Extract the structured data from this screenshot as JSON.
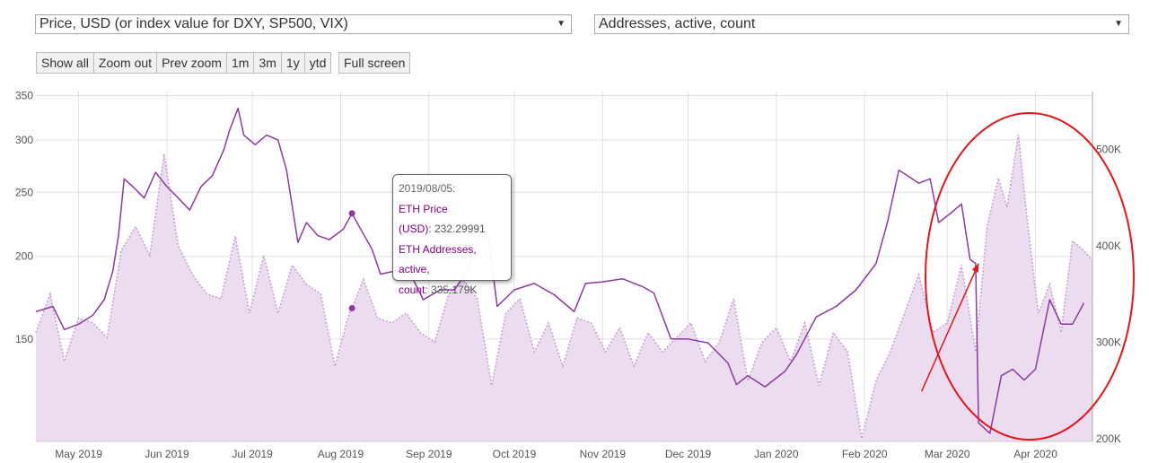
{
  "controls": {
    "left_select": "Price, USD (or index value for DXY, SP500, VIX)",
    "right_select": "Addresses, active, count",
    "zoom_buttons": [
      "Show all",
      "Zoom out",
      "Prev zoom"
    ],
    "range_buttons": [
      "1m",
      "3m",
      "1y",
      "ytd"
    ],
    "fullscreen_button": "Full screen"
  },
  "tooltip": {
    "date": "2019/08/05:",
    "price_label_1": "ETH Price",
    "price_label_2": "(USD)",
    "price_value": "232.29991",
    "addr_label_1": "ETH Addresses, active,",
    "addr_label_2": "count",
    "addr_value": "335.179K"
  },
  "colors": {
    "price_line": "#8b3a9e",
    "addresses_line": "#c8a0d2",
    "addresses_fill": "#ecdcef",
    "annotation": "#e8141b",
    "grid": "#e0e0e0"
  },
  "chart_data": {
    "type": "line",
    "x_range": [
      "2019-04-16",
      "2020-04-21"
    ],
    "y_left": {
      "scale": "log",
      "range": [
        105,
        355
      ],
      "ticks": [
        150,
        200,
        250,
        300,
        350
      ]
    },
    "y_right": {
      "range": [
        197000,
        560000
      ],
      "ticks": [
        "200K",
        "300K",
        "400K",
        "500K"
      ]
    },
    "x_ticks": [
      "May 2019",
      "Jun 2019",
      "Jul 2019",
      "Aug 2019",
      "Sep 2019",
      "Oct 2019",
      "Nov 2019",
      "Dec 2019",
      "Jan 2020",
      "Feb 2020",
      "Mar 2020",
      "Apr 2020"
    ],
    "grid": true,
    "series": [
      {
        "axis": "left",
        "points": [
          [
            "2019-04-16",
            165
          ],
          [
            "2019-04-22",
            168
          ],
          [
            "2019-04-26",
            155
          ],
          [
            "2019-05-01",
            158
          ],
          [
            "2019-05-06",
            163
          ],
          [
            "2019-05-10",
            172
          ],
          [
            "2019-05-13",
            190
          ],
          [
            "2019-05-15",
            215
          ],
          [
            "2019-05-17",
            262
          ],
          [
            "2019-05-20",
            255
          ],
          [
            "2019-05-24",
            245
          ],
          [
            "2019-05-28",
            268
          ],
          [
            "2019-06-01",
            255
          ],
          [
            "2019-06-05",
            245
          ],
          [
            "2019-06-09",
            235
          ],
          [
            "2019-06-13",
            255
          ],
          [
            "2019-06-17",
            265
          ],
          [
            "2019-06-21",
            290
          ],
          [
            "2019-06-23",
            310
          ],
          [
            "2019-06-26",
            335
          ],
          [
            "2019-06-28",
            305
          ],
          [
            "2019-07-02",
            295
          ],
          [
            "2019-07-06",
            305
          ],
          [
            "2019-07-10",
            300
          ],
          [
            "2019-07-13",
            270
          ],
          [
            "2019-07-17",
            210
          ],
          [
            "2019-07-20",
            225
          ],
          [
            "2019-07-24",
            215
          ],
          [
            "2019-07-28",
            212
          ],
          [
            "2019-08-02",
            220
          ],
          [
            "2019-08-05",
            232.3
          ],
          [
            "2019-08-08",
            220
          ],
          [
            "2019-08-12",
            205
          ],
          [
            "2019-08-15",
            188
          ],
          [
            "2019-08-20",
            190
          ],
          [
            "2019-08-25",
            190
          ],
          [
            "2019-08-30",
            172
          ],
          [
            "2019-09-05",
            178
          ],
          [
            "2019-09-10",
            178
          ],
          [
            "2019-09-15",
            192
          ],
          [
            "2019-09-19",
            215
          ],
          [
            "2019-09-22",
            212
          ],
          [
            "2019-09-25",
            168
          ],
          [
            "2019-10-01",
            178
          ],
          [
            "2019-10-08",
            182
          ],
          [
            "2019-10-15",
            175
          ],
          [
            "2019-10-22",
            165
          ],
          [
            "2019-10-26",
            182
          ],
          [
            "2019-11-01",
            183
          ],
          [
            "2019-11-08",
            185
          ],
          [
            "2019-11-15",
            180
          ],
          [
            "2019-11-19",
            176
          ],
          [
            "2019-11-25",
            150
          ],
          [
            "2019-12-01",
            150
          ],
          [
            "2019-12-08",
            148
          ],
          [
            "2019-12-15",
            138
          ],
          [
            "2019-12-18",
            128
          ],
          [
            "2019-12-22",
            132
          ],
          [
            "2019-12-28",
            127
          ],
          [
            "2020-01-04",
            134
          ],
          [
            "2020-01-08",
            142
          ],
          [
            "2020-01-15",
            162
          ],
          [
            "2020-01-22",
            168
          ],
          [
            "2020-01-29",
            178
          ],
          [
            "2020-02-05",
            195
          ],
          [
            "2020-02-09",
            225
          ],
          [
            "2020-02-13",
            270
          ],
          [
            "2020-02-16",
            265
          ],
          [
            "2020-02-20",
            258
          ],
          [
            "2020-02-24",
            262
          ],
          [
            "2020-02-27",
            225
          ],
          [
            "2020-03-02",
            232
          ],
          [
            "2020-03-06",
            240
          ],
          [
            "2020-03-09",
            198
          ],
          [
            "2020-03-11",
            195
          ],
          [
            "2020-03-12",
            112
          ],
          [
            "2020-03-16",
            108
          ],
          [
            "2020-03-20",
            132
          ],
          [
            "2020-03-24",
            135
          ],
          [
            "2020-03-28",
            130
          ],
          [
            "2020-04-01",
            135
          ],
          [
            "2020-04-06",
            172
          ],
          [
            "2020-04-10",
            158
          ],
          [
            "2020-04-14",
            158
          ],
          [
            "2020-04-18",
            170
          ]
        ]
      },
      {
        "axis": "right",
        "points": [
          [
            "2019-04-16",
            310000
          ],
          [
            "2019-04-21",
            350000
          ],
          [
            "2019-04-26",
            280000
          ],
          [
            "2019-05-01",
            325000
          ],
          [
            "2019-05-06",
            320000
          ],
          [
            "2019-05-11",
            305000
          ],
          [
            "2019-05-16",
            395000
          ],
          [
            "2019-05-21",
            420000
          ],
          [
            "2019-05-26",
            390000
          ],
          [
            "2019-05-31",
            495000
          ],
          [
            "2019-06-05",
            400000
          ],
          [
            "2019-06-10",
            370000
          ],
          [
            "2019-06-15",
            350000
          ],
          [
            "2019-06-20",
            345000
          ],
          [
            "2019-06-25",
            410000
          ],
          [
            "2019-06-30",
            330000
          ],
          [
            "2019-07-05",
            390000
          ],
          [
            "2019-07-10",
            330000
          ],
          [
            "2019-07-15",
            380000
          ],
          [
            "2019-07-20",
            360000
          ],
          [
            "2019-07-25",
            350000
          ],
          [
            "2019-07-30",
            275000
          ],
          [
            "2019-08-04",
            330000
          ],
          [
            "2019-08-05",
            335179
          ],
          [
            "2019-08-09",
            365000
          ],
          [
            "2019-08-14",
            325000
          ],
          [
            "2019-08-19",
            320000
          ],
          [
            "2019-08-24",
            330000
          ],
          [
            "2019-08-29",
            310000
          ],
          [
            "2019-09-03",
            300000
          ],
          [
            "2019-09-08",
            350000
          ],
          [
            "2019-09-13",
            365000
          ],
          [
            "2019-09-18",
            345000
          ],
          [
            "2019-09-23",
            255000
          ],
          [
            "2019-09-28",
            330000
          ],
          [
            "2019-10-03",
            345000
          ],
          [
            "2019-10-08",
            290000
          ],
          [
            "2019-10-13",
            320000
          ],
          [
            "2019-10-18",
            275000
          ],
          [
            "2019-10-23",
            325000
          ],
          [
            "2019-10-28",
            320000
          ],
          [
            "2019-11-02",
            290000
          ],
          [
            "2019-11-07",
            315000
          ],
          [
            "2019-11-12",
            275000
          ],
          [
            "2019-11-17",
            310000
          ],
          [
            "2019-11-22",
            290000
          ],
          [
            "2019-11-27",
            305000
          ],
          [
            "2019-12-02",
            320000
          ],
          [
            "2019-12-07",
            280000
          ],
          [
            "2019-12-12",
            300000
          ],
          [
            "2019-12-17",
            345000
          ],
          [
            "2019-12-22",
            260000
          ],
          [
            "2019-12-27",
            300000
          ],
          [
            "2020-01-01",
            315000
          ],
          [
            "2020-01-06",
            280000
          ],
          [
            "2020-01-11",
            320000
          ],
          [
            "2020-01-16",
            255000
          ],
          [
            "2020-01-21",
            310000
          ],
          [
            "2020-01-26",
            290000
          ],
          [
            "2020-01-31",
            200000
          ],
          [
            "2020-02-05",
            260000
          ],
          [
            "2020-02-10",
            290000
          ],
          [
            "2020-02-15",
            330000
          ],
          [
            "2020-02-20",
            370000
          ],
          [
            "2020-02-25",
            310000
          ],
          [
            "2020-03-01",
            320000
          ],
          [
            "2020-03-06",
            380000
          ],
          [
            "2020-03-11",
            290000
          ],
          [
            "2020-03-15",
            420000
          ],
          [
            "2020-03-19",
            470000
          ],
          [
            "2020-03-22",
            440000
          ],
          [
            "2020-03-26",
            515000
          ],
          [
            "2020-03-29",
            430000
          ],
          [
            "2020-04-02",
            330000
          ],
          [
            "2020-04-06",
            360000
          ],
          [
            "2020-04-10",
            310000
          ],
          [
            "2020-04-14",
            405000
          ],
          [
            "2020-04-18",
            395000
          ],
          [
            "2020-04-21",
            385000
          ]
        ]
      }
    ],
    "annotations": [
      {
        "type": "ellipse",
        "around": "Mar-Apr 2020 region"
      },
      {
        "type": "arrow",
        "from": [
          "2020-02-21",
          125
        ],
        "to": [
          "2020-03-12",
          195
        ]
      }
    ]
  }
}
